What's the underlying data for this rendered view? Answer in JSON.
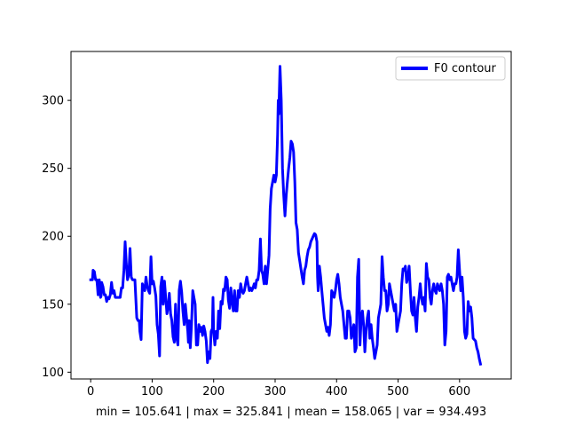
{
  "chart_data": {
    "type": "line",
    "title": "",
    "xlabel": "min = 105.641 | max = 325.841 | mean = 158.065 | var = 934.493",
    "ylabel": "",
    "xlim": [
      -32,
      684
    ],
    "ylim": [
      95,
      336
    ],
    "xticks": [
      0,
      100,
      200,
      300,
      400,
      500,
      600
    ],
    "yticks": [
      100,
      150,
      200,
      250,
      300
    ],
    "grid": false,
    "legend_placement": "top-right",
    "series": [
      {
        "name": "F0 contour",
        "color": "#0000ff",
        "points": [
          [
            0,
            168
          ],
          [
            3,
            168
          ],
          [
            4,
            175
          ],
          [
            6,
            174
          ],
          [
            8,
            168
          ],
          [
            10,
            168
          ],
          [
            11,
            163
          ],
          [
            12,
            157
          ],
          [
            14,
            168
          ],
          [
            16,
            155
          ],
          [
            17,
            156
          ],
          [
            18,
            166
          ],
          [
            20,
            163
          ],
          [
            22,
            157
          ],
          [
            24,
            157
          ],
          [
            26,
            152
          ],
          [
            28,
            155
          ],
          [
            30,
            154
          ],
          [
            32,
            157
          ],
          [
            34,
            166
          ],
          [
            36,
            158
          ],
          [
            38,
            160
          ],
          [
            40,
            155
          ],
          [
            44,
            155
          ],
          [
            48,
            155
          ],
          [
            50,
            162
          ],
          [
            52,
            162
          ],
          [
            54,
            175
          ],
          [
            56,
            196
          ],
          [
            58,
            180
          ],
          [
            60,
            168
          ],
          [
            62,
            172
          ],
          [
            64,
            191
          ],
          [
            66,
            170
          ],
          [
            68,
            168
          ],
          [
            72,
            168
          ],
          [
            75,
            140
          ],
          [
            77,
            138
          ],
          [
            79,
            138
          ],
          [
            80,
            130
          ],
          [
            82,
            124
          ],
          [
            84,
            165
          ],
          [
            86,
            162
          ],
          [
            88,
            160
          ],
          [
            90,
            170
          ],
          [
            92,
            163
          ],
          [
            94,
            160
          ],
          [
            96,
            158
          ],
          [
            98,
            185
          ],
          [
            100,
            165
          ],
          [
            102,
            167
          ],
          [
            104,
            162
          ],
          [
            106,
            156
          ],
          [
            108,
            135
          ],
          [
            110,
            128
          ],
          [
            112,
            112
          ],
          [
            114,
            163
          ],
          [
            116,
            170
          ],
          [
            118,
            150
          ],
          [
            120,
            167
          ],
          [
            122,
            155
          ],
          [
            124,
            143
          ],
          [
            126,
            148
          ],
          [
            128,
            158
          ],
          [
            130,
            143
          ],
          [
            132,
            138
          ],
          [
            134,
            126
          ],
          [
            136,
            122
          ],
          [
            138,
            150
          ],
          [
            140,
            125
          ],
          [
            142,
            120
          ],
          [
            144,
            160
          ],
          [
            146,
            167
          ],
          [
            148,
            159
          ],
          [
            150,
            145
          ],
          [
            152,
            135
          ],
          [
            154,
            150
          ],
          [
            156,
            140
          ],
          [
            158,
            130
          ],
          [
            159,
            122
          ],
          [
            160,
            138
          ],
          [
            162,
            118
          ],
          [
            164,
            135
          ],
          [
            166,
            160
          ],
          [
            168,
            155
          ],
          [
            170,
            150
          ],
          [
            172,
            120
          ],
          [
            174,
            120
          ],
          [
            176,
            135
          ],
          [
            178,
            130
          ],
          [
            180,
            133
          ],
          [
            182,
            127
          ],
          [
            184,
            134
          ],
          [
            186,
            130
          ],
          [
            188,
            123
          ],
          [
            190,
            107
          ],
          [
            192,
            115
          ],
          [
            194,
            110
          ],
          [
            196,
            130
          ],
          [
            198,
            132
          ],
          [
            199,
            155
          ],
          [
            200,
            130
          ],
          [
            202,
            120
          ],
          [
            204,
            130
          ],
          [
            206,
            125
          ],
          [
            208,
            145
          ],
          [
            210,
            132
          ],
          [
            212,
            152
          ],
          [
            214,
            150
          ],
          [
            216,
            161
          ],
          [
            218,
            160
          ],
          [
            220,
            170
          ],
          [
            222,
            168
          ],
          [
            224,
            153
          ],
          [
            226,
            147
          ],
          [
            228,
            162
          ],
          [
            230,
            152
          ],
          [
            232,
            145
          ],
          [
            234,
            160
          ],
          [
            236,
            145
          ],
          [
            238,
            145
          ],
          [
            240,
            160
          ],
          [
            242,
            155
          ],
          [
            244,
            165
          ],
          [
            246,
            160
          ],
          [
            248,
            158
          ],
          [
            250,
            160
          ],
          [
            252,
            165
          ],
          [
            254,
            170
          ],
          [
            256,
            165
          ],
          [
            258,
            160
          ],
          [
            260,
            162
          ],
          [
            262,
            160
          ],
          [
            264,
            162
          ],
          [
            266,
            165
          ],
          [
            268,
            162
          ],
          [
            270,
            168
          ],
          [
            272,
            168
          ],
          [
            274,
            175
          ],
          [
            276,
            198
          ],
          [
            278,
            175
          ],
          [
            280,
            172
          ],
          [
            282,
            165
          ],
          [
            284,
            178
          ],
          [
            286,
            165
          ],
          [
            288,
            175
          ],
          [
            290,
            186
          ],
          [
            292,
            220
          ],
          [
            294,
            235
          ],
          [
            296,
            240
          ],
          [
            298,
            245
          ],
          [
            300,
            240
          ],
          [
            302,
            245
          ],
          [
            304,
            275
          ],
          [
            305,
            300
          ],
          [
            306,
            290
          ],
          [
            308,
            325
          ],
          [
            310,
            300
          ],
          [
            312,
            250
          ],
          [
            314,
            230
          ],
          [
            316,
            215
          ],
          [
            318,
            230
          ],
          [
            320,
            240
          ],
          [
            322,
            250
          ],
          [
            324,
            258
          ],
          [
            326,
            270
          ],
          [
            328,
            268
          ],
          [
            330,
            262
          ],
          [
            332,
            240
          ],
          [
            334,
            210
          ],
          [
            336,
            205
          ],
          [
            338,
            188
          ],
          [
            340,
            182
          ],
          [
            342,
            176
          ],
          [
            344,
            170
          ],
          [
            346,
            165
          ],
          [
            348,
            175
          ],
          [
            350,
            178
          ],
          [
            352,
            185
          ],
          [
            354,
            190
          ],
          [
            356,
            192
          ],
          [
            358,
            196
          ],
          [
            360,
            198
          ],
          [
            362,
            200
          ],
          [
            364,
            202
          ],
          [
            366,
            201
          ],
          [
            368,
            196
          ],
          [
            369,
            170
          ],
          [
            370,
            160
          ],
          [
            372,
            178
          ],
          [
            374,
            170
          ],
          [
            376,
            160
          ],
          [
            378,
            150
          ],
          [
            380,
            140
          ],
          [
            382,
            135
          ],
          [
            384,
            130
          ],
          [
            386,
            133
          ],
          [
            388,
            127
          ],
          [
            390,
            135
          ],
          [
            392,
            160
          ],
          [
            394,
            158
          ],
          [
            396,
            155
          ],
          [
            398,
            160
          ],
          [
            400,
            168
          ],
          [
            402,
            172
          ],
          [
            404,
            165
          ],
          [
            406,
            155
          ],
          [
            408,
            150
          ],
          [
            410,
            145
          ],
          [
            412,
            135
          ],
          [
            414,
            125
          ],
          [
            416,
            125
          ],
          [
            418,
            145
          ],
          [
            420,
            145
          ],
          [
            422,
            140
          ],
          [
            424,
            125
          ],
          [
            426,
            130
          ],
          [
            428,
            135
          ],
          [
            430,
            115
          ],
          [
            432,
            118
          ],
          [
            434,
            170
          ],
          [
            436,
            183
          ],
          [
            438,
            120
          ],
          [
            440,
            140
          ],
          [
            442,
            145
          ],
          [
            444,
            135
          ],
          [
            446,
            115
          ],
          [
            448,
            130
          ],
          [
            450,
            140
          ],
          [
            452,
            145
          ],
          [
            454,
            125
          ],
          [
            456,
            135
          ],
          [
            458,
            125
          ],
          [
            460,
            118
          ],
          [
            462,
            110
          ],
          [
            464,
            115
          ],
          [
            466,
            120
          ],
          [
            468,
            140
          ],
          [
            470,
            145
          ],
          [
            472,
            150
          ],
          [
            474,
            185
          ],
          [
            476,
            170
          ],
          [
            478,
            160
          ],
          [
            480,
            160
          ],
          [
            482,
            145
          ],
          [
            484,
            150
          ],
          [
            486,
            165
          ],
          [
            488,
            160
          ],
          [
            490,
            155
          ],
          [
            492,
            150
          ],
          [
            494,
            145
          ],
          [
            496,
            150
          ],
          [
            498,
            130
          ],
          [
            500,
            135
          ],
          [
            502,
            140
          ],
          [
            504,
            145
          ],
          [
            506,
            165
          ],
          [
            508,
            176
          ],
          [
            510,
            175
          ],
          [
            512,
            178
          ],
          [
            514,
            166
          ],
          [
            516,
            170
          ],
          [
            518,
            178
          ],
          [
            520,
            160
          ],
          [
            522,
            145
          ],
          [
            524,
            142
          ],
          [
            526,
            155
          ],
          [
            528,
            140
          ],
          [
            530,
            130
          ],
          [
            532,
            148
          ],
          [
            534,
            155
          ],
          [
            536,
            165
          ],
          [
            538,
            155
          ],
          [
            540,
            150
          ],
          [
            542,
            155
          ],
          [
            544,
            145
          ],
          [
            546,
            180
          ],
          [
            548,
            170
          ],
          [
            550,
            168
          ],
          [
            552,
            155
          ],
          [
            554,
            150
          ],
          [
            556,
            160
          ],
          [
            558,
            165
          ],
          [
            560,
            160
          ],
          [
            562,
            158
          ],
          [
            564,
            165
          ],
          [
            566,
            162
          ],
          [
            568,
            160
          ],
          [
            570,
            165
          ],
          [
            572,
            160
          ],
          [
            574,
            150
          ],
          [
            576,
            120
          ],
          [
            578,
            130
          ],
          [
            580,
            170
          ],
          [
            582,
            172
          ],
          [
            584,
            168
          ],
          [
            586,
            170
          ],
          [
            588,
            165
          ],
          [
            590,
            160
          ],
          [
            592,
            165
          ],
          [
            594,
            165
          ],
          [
            596,
            170
          ],
          [
            598,
            190
          ],
          [
            600,
            175
          ],
          [
            602,
            160
          ],
          [
            604,
            170
          ],
          [
            606,
            155
          ],
          [
            608,
            130
          ],
          [
            610,
            125
          ],
          [
            612,
            128
          ],
          [
            614,
            152
          ],
          [
            616,
            145
          ],
          [
            618,
            148
          ],
          [
            620,
            140
          ],
          [
            622,
            125
          ],
          [
            624,
            124
          ],
          [
            626,
            123
          ],
          [
            628,
            118
          ],
          [
            630,
            115
          ],
          [
            632,
            110
          ],
          [
            634,
            106
          ]
        ]
      }
    ]
  }
}
